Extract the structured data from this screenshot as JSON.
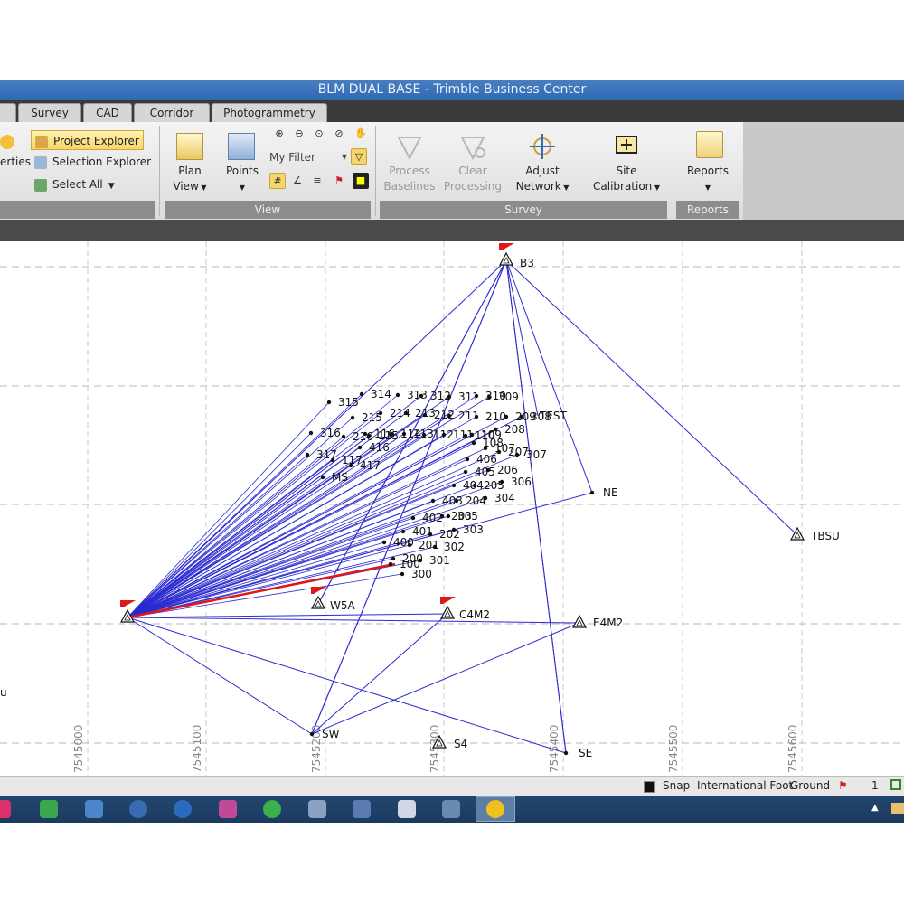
{
  "window": {
    "title": "BLM DUAL BASE - Trimble Business Center"
  },
  "tabs": [
    "Survey",
    "CAD",
    "Corridor",
    "Photogrammetry"
  ],
  "ribbon": {
    "left_partial_label": "erties",
    "project_explorer": "Project Explorer",
    "selection_explorer": "Selection Explorer",
    "select_all": "Select All",
    "plan_view": [
      "Plan",
      "View"
    ],
    "points": "Points",
    "filter": "My Filter",
    "process_baselines": [
      "Process",
      "Baselines"
    ],
    "clear_processing": [
      "Clear",
      "Processing"
    ],
    "adjust_network": [
      "Adjust",
      "Network"
    ],
    "site_calibration": [
      "Site",
      "Calibration"
    ],
    "reports": "Reports",
    "groups": {
      "view": "View",
      "survey": "Survey",
      "reports": "Reports"
    },
    "accent": "#f6d66a"
  },
  "plan": {
    "easting_labels": [
      "7545000",
      "7545100",
      "7545200",
      "7545300",
      "7545400",
      "7545500",
      "7545600"
    ],
    "stations": [
      {
        "name": "B3"
      },
      {
        "name": "NE"
      },
      {
        "name": "TBSU"
      },
      {
        "name": "C4M2"
      },
      {
        "name": "E4M2"
      },
      {
        "name": "SW"
      },
      {
        "name": "S4"
      },
      {
        "name": "SE"
      },
      {
        "name": "W5A"
      },
      {
        "name": "TEST"
      },
      {
        "name": "u"
      }
    ],
    "points": [
      "315",
      "314",
      "313",
      "312",
      "311",
      "310",
      "309",
      "308",
      "216",
      "215",
      "214",
      "213",
      "212",
      "211",
      "210",
      "209",
      "208",
      "316",
      "116",
      "115",
      "114",
      "113",
      "112",
      "111",
      "110",
      "109",
      "108",
      "107",
      "207",
      "307",
      "317",
      "416",
      "117",
      "417",
      "406",
      "MS",
      "405",
      "206",
      "306",
      "404",
      "205",
      "304",
      "403",
      "204",
      "305",
      "402",
      "203",
      "303",
      "401",
      "202",
      "400",
      "201",
      "302",
      "200",
      "301",
      "300",
      "100"
    ],
    "line_color": "#2a2ad0",
    "highlight_color": "#e01818",
    "flag_color": "#e01818"
  },
  "status": {
    "snap": "Snap",
    "units": "International Foot",
    "coord": "Ground",
    "page": "1"
  }
}
